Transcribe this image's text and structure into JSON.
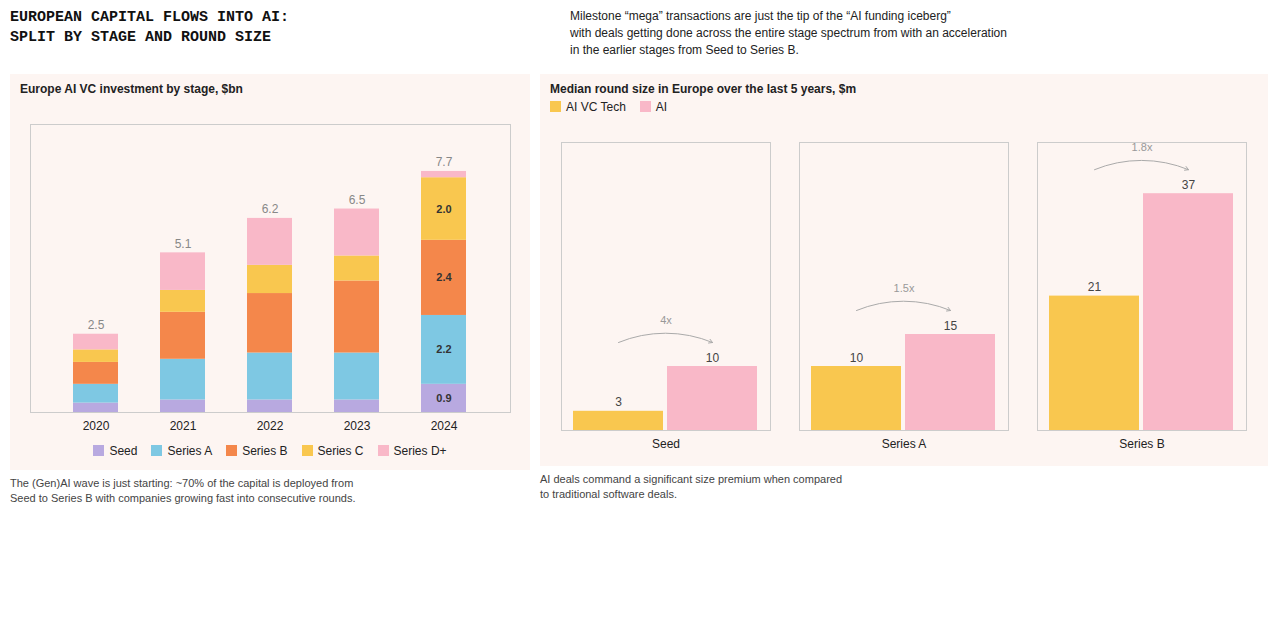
{
  "title": "EUROPEAN CAPITAL FLOWS INTO AI:\nSPLIT BY STAGE AND ROUND SIZE",
  "subtitle": "Milestone “mega” transactions are just the tip of the “AI funding iceberg”\nwith deals getting done across the entire stage spectrum from with an acceleration\nin the earlier stages from Seed to Series B.",
  "chart_data": [
    {
      "type": "bar",
      "title": "Europe AI VC investment by stage, $bn",
      "caption": "The (Gen)AI wave is just starting: ~70% of the capital is deployed from\nSeed to Series B with companies growing fast into consecutive rounds.",
      "stacked": true,
      "categories": [
        "2020",
        "2021",
        "2022",
        "2023",
        "2024"
      ],
      "series": [
        {
          "name": "Seed",
          "color": "#b8a9e0",
          "values": [
            0.3,
            0.4,
            0.4,
            0.4,
            0.9
          ],
          "value_labels": [
            null,
            null,
            null,
            null,
            "0.9"
          ]
        },
        {
          "name": "Series A",
          "color": "#7ec8e3",
          "values": [
            0.6,
            1.3,
            1.5,
            1.5,
            2.2
          ],
          "value_labels": [
            null,
            null,
            null,
            null,
            "2.2"
          ]
        },
        {
          "name": "Series B",
          "color": "#f4874b",
          "values": [
            0.7,
            1.5,
            1.9,
            2.3,
            2.4
          ],
          "value_labels": [
            null,
            null,
            null,
            null,
            "2.4"
          ]
        },
        {
          "name": "Series C",
          "color": "#f9c74f",
          "values": [
            0.4,
            0.7,
            0.9,
            0.8,
            2.0
          ],
          "value_labels": [
            null,
            null,
            null,
            null,
            "2.0"
          ]
        },
        {
          "name": "Series D+",
          "color": "#f9b8c8",
          "values": [
            0.5,
            1.2,
            1.5,
            1.5,
            0.2
          ]
        }
      ],
      "totals": [
        2.5,
        5.1,
        6.2,
        6.5,
        7.7
      ],
      "ylim": [
        0,
        9.2
      ],
      "tick_labels": "x",
      "grid": false,
      "legend": "bottom"
    },
    {
      "type": "bar",
      "title": "Median round size in Europe over the last 5 years, $m",
      "caption": "AI deals command a significant size premium when compared\nto traditional software deals.",
      "categories": [
        "Seed",
        "Series A",
        "Series B"
      ],
      "series": [
        {
          "name": "AI VC Tech",
          "color": "#f9c74f",
          "values": [
            3,
            10,
            21
          ]
        },
        {
          "name": "AI",
          "color": "#f9b8c8",
          "values": [
            10,
            15,
            37
          ]
        }
      ],
      "annotations": [
        {
          "category": "Seed",
          "text": "4x"
        },
        {
          "category": "Series A",
          "text": "1.5x"
        },
        {
          "category": "Series B",
          "text": "1.8x"
        }
      ],
      "ylim": [
        0,
        45
      ],
      "data_labels": true,
      "tick_labels": "x",
      "grid": false,
      "legend": "top-left"
    }
  ]
}
